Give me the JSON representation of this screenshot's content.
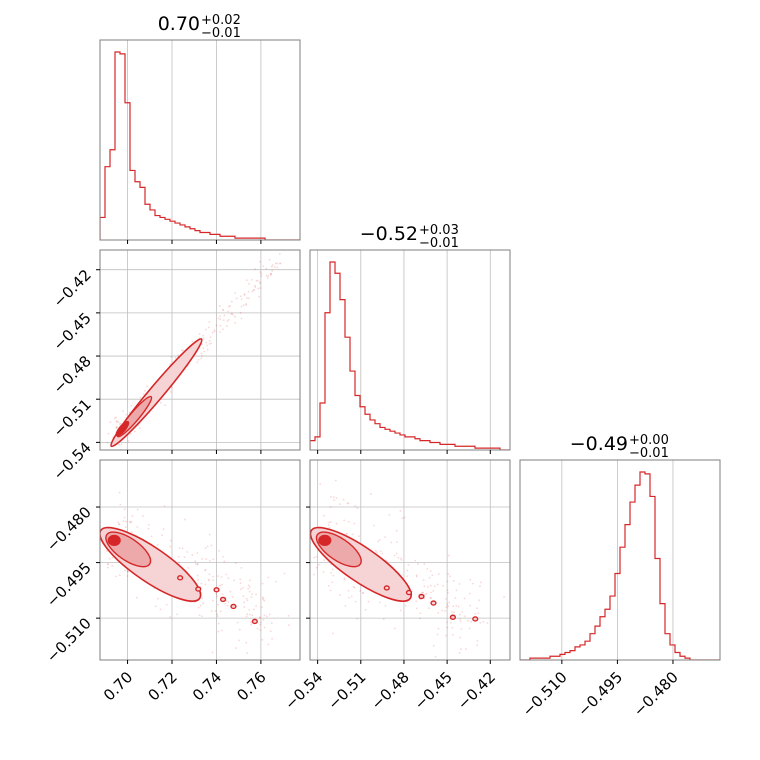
{
  "colors": {
    "accent": "#d62728",
    "fill_outer": "#f6d3d4",
    "fill_inner": "#eda9aa",
    "grid": "#bfbfbf",
    "frame": "#7f7f7f"
  },
  "titles": [
    {
      "main": "0.70",
      "sup": "+0.02",
      "sub": "−0.01"
    },
    {
      "main": "−0.52",
      "sup": "+0.03",
      "sub": "−0.01"
    },
    {
      "main": "−0.49",
      "sup": "+0.00",
      "sub": "−0.01"
    }
  ],
  "ticks": {
    "p0": {
      "values": [
        0.7,
        0.72,
        0.74,
        0.76
      ],
      "labels": [
        "0.70",
        "0.72",
        "0.74",
        "0.76"
      ]
    },
    "p1": {
      "values": [
        -0.54,
        -0.51,
        -0.48,
        -0.45,
        -0.42
      ],
      "labels": [
        "−0.54",
        "−0.51",
        "−0.48",
        "−0.45",
        "−0.42"
      ]
    },
    "p2": {
      "values": [
        -0.51,
        -0.495,
        -0.48
      ],
      "labels": [
        "−0.510",
        "−0.495",
        "−0.480"
      ]
    }
  },
  "chart_data": {
    "type": "corner",
    "parameters": [
      "p0",
      "p1",
      "p2"
    ],
    "ranges": {
      "p0": [
        0.6876,
        0.7776
      ],
      "p1": [
        -0.5453,
        -0.4063
      ],
      "p2": [
        -0.5213,
        -0.4673
      ]
    },
    "histograms": {
      "p0": [
        0.12,
        0.39,
        0.48,
        1.0,
        0.99,
        0.73,
        0.37,
        0.31,
        0.28,
        0.19,
        0.16,
        0.13,
        0.12,
        0.11,
        0.1,
        0.09,
        0.08,
        0.07,
        0.06,
        0.05,
        0.04,
        0.04,
        0.03,
        0.03,
        0.02,
        0.02,
        0.02,
        0.01,
        0.01,
        0.01,
        0.01,
        0.01,
        0.01,
        0.0,
        0.0,
        0.0,
        0.0,
        0.0,
        0.0,
        0.0
      ],
      "p1": [
        0.05,
        0.07,
        0.25,
        0.73,
        1.0,
        0.94,
        0.8,
        0.6,
        0.42,
        0.29,
        0.23,
        0.19,
        0.16,
        0.14,
        0.12,
        0.11,
        0.1,
        0.09,
        0.08,
        0.07,
        0.07,
        0.06,
        0.05,
        0.05,
        0.04,
        0.04,
        0.03,
        0.03,
        0.03,
        0.02,
        0.02,
        0.02,
        0.02,
        0.01,
        0.01,
        0.01,
        0.01,
        0.01,
        0.0,
        0.0
      ],
      "p2": [
        0.0,
        0.0,
        0.01,
        0.01,
        0.01,
        0.01,
        0.02,
        0.02,
        0.03,
        0.04,
        0.05,
        0.07,
        0.08,
        0.1,
        0.14,
        0.18,
        0.23,
        0.27,
        0.34,
        0.46,
        0.6,
        0.72,
        0.84,
        0.93,
        1.0,
        0.99,
        0.87,
        0.54,
        0.3,
        0.14,
        0.08,
        0.04,
        0.02,
        0.01,
        0.0,
        0.0,
        0.0,
        0.0,
        0.0,
        0.0
      ]
    },
    "correlations": [
      {
        "x": "p0",
        "y": "p1",
        "relation": "linear positive",
        "mode": [
          0.695,
          -0.536
        ]
      },
      {
        "x": "p0",
        "y": "p2",
        "relation": "negative",
        "mode": [
          0.694,
          -0.489
        ]
      },
      {
        "x": "p1",
        "y": "p2",
        "relation": "negative",
        "mode": [
          -0.535,
          -0.489
        ]
      }
    ],
    "grid": true
  }
}
